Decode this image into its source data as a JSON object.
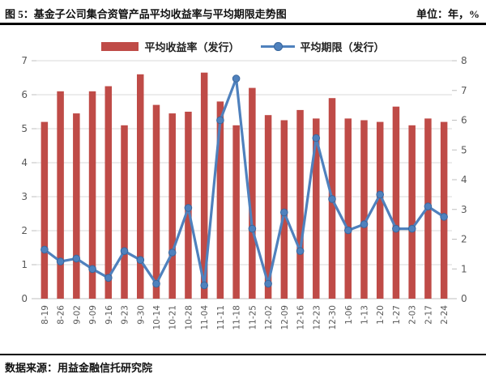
{
  "header": {
    "title": "图 5：基金子公司集合资管产品平均收益率与平均期限走势图",
    "unit_label": "单位：年，%"
  },
  "footer": {
    "source": "数据来源：用益金融信托研究院"
  },
  "colors": {
    "bar": "#bf4b47",
    "line": "#4f81bd",
    "marker_edge": "#3a679d",
    "grid": "#d9d9d9",
    "axis_line": "#bfbfbf",
    "axis_text": "#595959",
    "rule": "#000000"
  },
  "chart_data": {
    "type": "bar",
    "subtype": "combo-bar-line-dual-axis",
    "title": "基金子公司集合资管产品平均收益率与平均期限走势图",
    "categories": [
      "8-19",
      "8-26",
      "9-02",
      "9-09",
      "9-16",
      "9-23",
      "9-30",
      "10-14",
      "10-21",
      "10-28",
      "11-04",
      "11-11",
      "11-18",
      "11-25",
      "12-02",
      "12-09",
      "12-16",
      "12-23",
      "12-30",
      "1-06",
      "1-13",
      "1-20",
      "1-27",
      "2-03",
      "2-17",
      "2-24"
    ],
    "series": [
      {
        "name": "平均收益率（发行）",
        "type": "bar",
        "axis": "left",
        "unit": "%",
        "values": [
          5.2,
          6.1,
          5.45,
          6.1,
          6.25,
          5.1,
          6.6,
          5.7,
          5.45,
          5.5,
          6.65,
          5.8,
          5.1,
          6.2,
          5.4,
          5.25,
          5.55,
          5.3,
          5.9,
          5.3,
          5.25,
          5.2,
          5.65,
          5.1,
          5.3,
          5.2
        ]
      },
      {
        "name": "平均期限（发行）",
        "type": "line",
        "axis": "right",
        "unit": "年",
        "values": [
          1.65,
          1.25,
          1.35,
          1.0,
          0.7,
          1.6,
          1.3,
          0.5,
          1.55,
          3.05,
          0.45,
          6.0,
          7.4,
          2.35,
          0.5,
          2.9,
          1.6,
          5.4,
          3.35,
          2.3,
          2.5,
          3.5,
          2.35,
          2.35,
          3.1,
          2.75
        ]
      }
    ],
    "left_axis": {
      "min": 0,
      "max": 7,
      "step": 1,
      "ticks": [
        "0",
        "1",
        "2",
        "3",
        "4",
        "5",
        "6",
        "7"
      ]
    },
    "right_axis": {
      "min": 0,
      "max": 8,
      "step": 1,
      "ticks": [
        "0",
        "1",
        "2",
        "3",
        "4",
        "5",
        "6",
        "7",
        "8"
      ]
    },
    "grid": true,
    "legend_position": "top-center"
  }
}
